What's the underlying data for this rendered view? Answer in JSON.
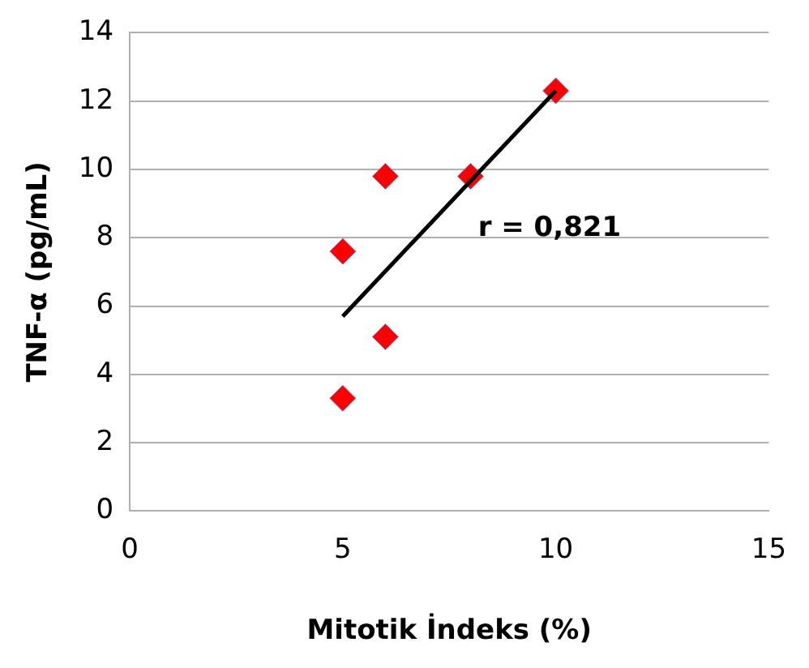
{
  "chart_data": {
    "type": "scatter",
    "xlabel": "Mitotik İndeks (%)",
    "ylabel": "TNF-α (pg/mL)",
    "xlim": [
      0,
      15
    ],
    "xticks": [
      0,
      5,
      10,
      15
    ],
    "ylim": [
      0,
      14
    ],
    "yticks": [
      0,
      2,
      4,
      6,
      8,
      10,
      12,
      14
    ],
    "grid": "y",
    "legend": false,
    "marker": "diamond",
    "series": [
      {
        "color": "#ff0000",
        "x": [
          5,
          5,
          6,
          6,
          8,
          10
        ],
        "values": [
          3.3,
          7.6,
          9.8,
          5.1,
          9.8,
          12.3
        ]
      },
      {
        "type": "line",
        "color": "#000000",
        "x": [
          5,
          10
        ],
        "values": [
          5.7,
          12.3
        ],
        "marker": "none"
      }
    ],
    "annotations": [
      "r = 0,821"
    ]
  }
}
